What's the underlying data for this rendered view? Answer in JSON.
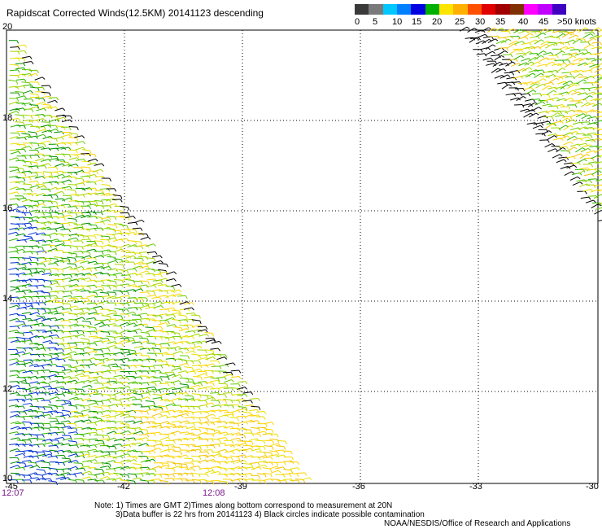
{
  "title": "Rapidscat Corrected Winds(12.5KM) 20141123 descending",
  "legend": {
    "labels": [
      "0",
      "5",
      "10",
      "15",
      "20",
      "25",
      "30",
      "35",
      "40",
      "45",
      ">50 knots"
    ],
    "colors": [
      "#3a3a3a",
      "#7a7a7a",
      "#00c8ff",
      "#0080ff",
      "#0000e0",
      "#00b000",
      "#ffe400",
      "#ffb000",
      "#ff5000",
      "#e00000",
      "#a00000",
      "#803000",
      "#ff00ff",
      "#c000ff",
      "#4000c0"
    ]
  },
  "map": {
    "lat_labels": [
      "20",
      "18",
      "16",
      "14",
      "12",
      "10"
    ],
    "lon_labels": [
      "-45",
      "-42",
      "-39",
      "-36",
      "-33",
      "-30"
    ],
    "time_labels": [
      "12:07",
      "12:08"
    ]
  },
  "notes": {
    "line1": "Note: 1) Times are GMT 2)Times along bottom correspond to measurement at 20N",
    "line2": "3)Data buffer is 22 hrs from 20141123 4) Black circles indicate possible contamination",
    "line3": "NOAA/NESDIS/Office of Research and Applications"
  }
}
